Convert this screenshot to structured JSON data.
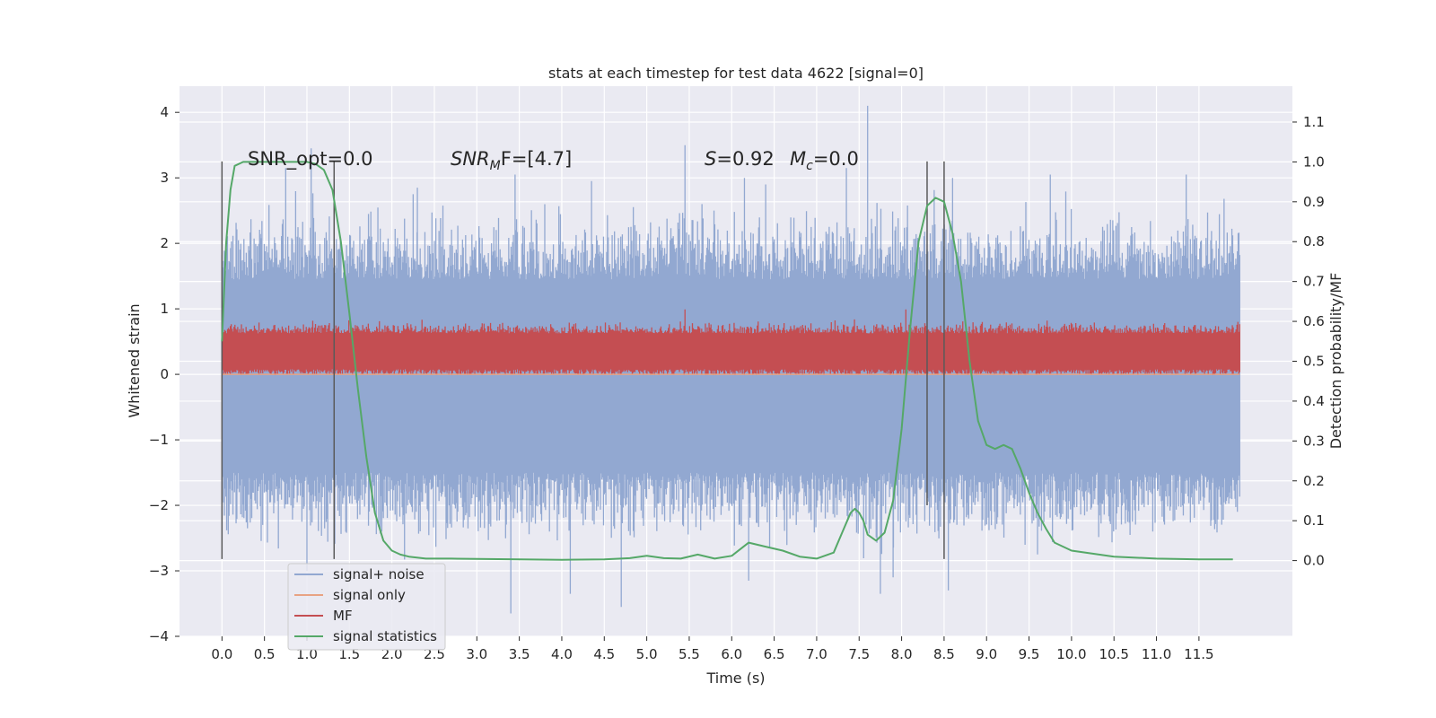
{
  "chart_data": {
    "type": "line",
    "title": "stats at each timestep for test data 4622 [signal=0]",
    "xlabel": "Time (s)",
    "ylabel": "Whitened strain",
    "y2label": "Detection probability/MF",
    "xlim": [
      -0.5,
      12.6
    ],
    "ylim": [
      -4.0,
      4.4
    ],
    "y2lim": [
      -0.19,
      1.19
    ],
    "x_ticks": [
      0.0,
      0.5,
      1.0,
      1.5,
      2.0,
      2.5,
      3.0,
      3.5,
      4.0,
      4.5,
      5.0,
      5.5,
      6.0,
      6.5,
      7.0,
      7.5,
      8.0,
      8.5,
      9.0,
      9.5,
      10.0,
      10.5,
      11.0,
      11.5
    ],
    "x_tick_labels": [
      "0.0",
      "0.5",
      "1.0",
      "1.5",
      "2.0",
      "2.5",
      "3.0",
      "3.5",
      "4.0",
      "4.5",
      "5.0",
      "5.5",
      "6.0",
      "6.5",
      "7.0",
      "7.5",
      "8.0",
      "8.5",
      "9.0",
      "9.5",
      "10.0",
      "10.5",
      "11.0",
      "11.5"
    ],
    "y_ticks": [
      4,
      3,
      2,
      1,
      0,
      -1,
      -2,
      -3,
      -4
    ],
    "y_tick_labels": [
      "4",
      "3",
      "2",
      "1",
      "0",
      "−1",
      "−2",
      "−3",
      "−4"
    ],
    "y2_ticks": [
      1.1,
      1.0,
      0.9,
      0.8,
      0.7,
      0.6,
      0.5,
      0.4,
      0.3,
      0.2,
      0.1,
      0.0
    ],
    "y2_tick_labels": [
      "1.1",
      "1.0",
      "0.9",
      "0.8",
      "0.7",
      "0.6",
      "0.5",
      "0.4",
      "0.3",
      "0.2",
      "0.1",
      "0.0"
    ],
    "grid": true,
    "legend_position": "lower-left",
    "annotations": {
      "snr_opt": "SNR_opt=0.0",
      "snr_mf_main": "SNR",
      "snr_mf_sub": "M",
      "snr_mf_rest": "F=[4.7]",
      "s_main": "S",
      "s_rest": "=0.92",
      "mc_main": "M",
      "mc_sub": "c",
      "mc_rest": "=0.0"
    },
    "vertical_lines": [
      {
        "x": 0.0,
        "ymin": -2.82,
        "ymax": 3.25
      },
      {
        "x": 1.32,
        "ymin": -2.82,
        "ymax": 3.25
      },
      {
        "x": 8.3,
        "ymin": -2.0,
        "ymax": 3.25
      },
      {
        "x": 8.5,
        "ymin": -2.82,
        "ymax": 3.25
      }
    ],
    "series": [
      {
        "name": "signal+ noise",
        "color": "#92a8d1",
        "axis": "left",
        "envelope": {
          "x_start": 0.0,
          "x_end": 11.98,
          "typical_low": -1.5,
          "typical_high": 1.45,
          "peak_max": 4.1,
          "peak_min": -3.65
        },
        "spikes": [
          [
            0.3,
            -2.35
          ],
          [
            1.0,
            -3.0
          ],
          [
            3.4,
            -3.65
          ],
          [
            4.1,
            -3.35
          ],
          [
            4.7,
            -3.55
          ],
          [
            5.45,
            3.5
          ],
          [
            6.2,
            -3.15
          ],
          [
            7.6,
            4.1
          ],
          [
            7.75,
            -3.35
          ],
          [
            7.9,
            -3.1
          ],
          [
            8.55,
            -3.3
          ],
          [
            9.6,
            -2.75
          ],
          [
            0.75,
            3.15
          ],
          [
            1.05,
            3.45
          ],
          [
            2.3,
            2.85
          ],
          [
            3.45,
            3.05
          ],
          [
            4.35,
            2.95
          ],
          [
            5.65,
            2.6
          ],
          [
            6.15,
            3.0
          ],
          [
            6.4,
            2.9
          ],
          [
            7.35,
            3.15
          ],
          [
            8.6,
            3.0
          ],
          [
            9.75,
            3.05
          ],
          [
            11.35,
            3.05
          ]
        ]
      },
      {
        "name": "signal only",
        "color": "#e8a383",
        "axis": "left",
        "x": [
          0.0,
          11.98
        ],
        "y": [
          0.0,
          0.0
        ]
      },
      {
        "name": "MF",
        "color": "#c44e52",
        "axis": "right",
        "envelope": {
          "x_start": 0.0,
          "x_end": 11.98,
          "baseline": 0.5,
          "typical_high": 0.57,
          "peak_max": 0.65
        },
        "spikes": [
          [
            5.45,
            0.63
          ],
          [
            8.05,
            0.63
          ],
          [
            8.72,
            0.6
          ]
        ]
      },
      {
        "name": "signal statistics",
        "color": "#55a868",
        "axis": "right",
        "x": [
          0.0,
          0.05,
          0.1,
          0.15,
          0.25,
          0.4,
          0.6,
          0.8,
          1.0,
          1.1,
          1.2,
          1.3,
          1.4,
          1.5,
          1.6,
          1.7,
          1.8,
          1.9,
          2.0,
          2.1,
          2.2,
          2.4,
          2.7,
          3.0,
          3.5,
          4.0,
          4.5,
          4.8,
          5.0,
          5.2,
          5.4,
          5.6,
          5.8,
          6.0,
          6.2,
          6.4,
          6.6,
          6.8,
          7.0,
          7.2,
          7.3,
          7.4,
          7.45,
          7.5,
          7.55,
          7.6,
          7.7,
          7.8,
          7.9,
          8.0,
          8.1,
          8.2,
          8.3,
          8.4,
          8.5,
          8.6,
          8.7,
          8.8,
          8.9,
          9.0,
          9.1,
          9.2,
          9.3,
          9.4,
          9.5,
          9.6,
          9.7,
          9.8,
          10.0,
          10.5,
          11.0,
          11.5,
          11.9
        ],
        "y": [
          0.55,
          0.8,
          0.93,
          0.99,
          1.0,
          1.0,
          1.0,
          1.0,
          1.0,
          0.995,
          0.98,
          0.93,
          0.8,
          0.62,
          0.43,
          0.26,
          0.12,
          0.05,
          0.025,
          0.015,
          0.01,
          0.005,
          0.005,
          0.004,
          0.003,
          0.002,
          0.003,
          0.006,
          0.012,
          0.006,
          0.005,
          0.015,
          0.005,
          0.012,
          0.045,
          0.035,
          0.025,
          0.01,
          0.005,
          0.02,
          0.07,
          0.12,
          0.13,
          0.12,
          0.1,
          0.065,
          0.05,
          0.07,
          0.15,
          0.33,
          0.58,
          0.8,
          0.89,
          0.91,
          0.9,
          0.82,
          0.7,
          0.5,
          0.35,
          0.29,
          0.28,
          0.29,
          0.28,
          0.23,
          0.17,
          0.12,
          0.08,
          0.045,
          0.025,
          0.01,
          0.005,
          0.003,
          0.003
        ]
      }
    ]
  },
  "legend": {
    "items": [
      {
        "label": "signal+ noise",
        "color": "#92a8d1"
      },
      {
        "label": "signal only",
        "color": "#e8a383"
      },
      {
        "label": "MF",
        "color": "#c44e52"
      },
      {
        "label": "signal statistics",
        "color": "#55a868"
      }
    ]
  }
}
